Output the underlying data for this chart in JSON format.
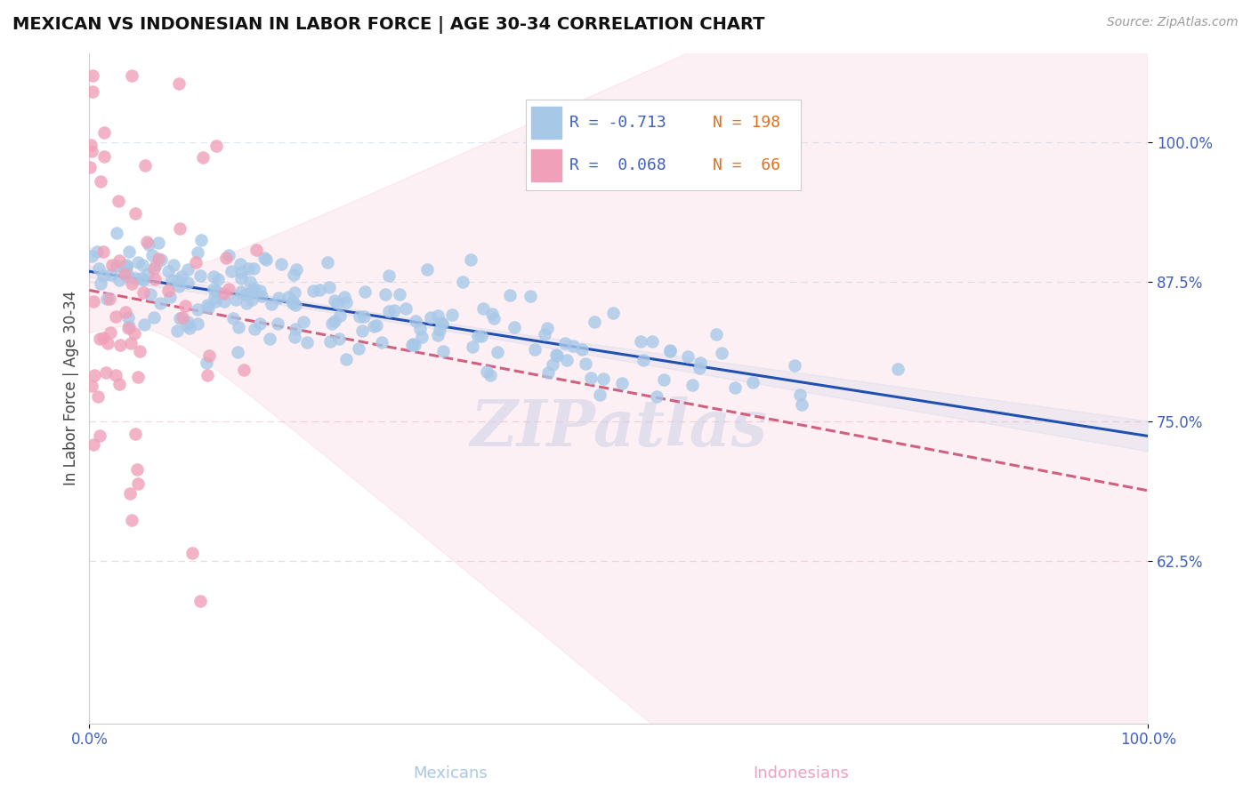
{
  "title": "MEXICAN VS INDONESIAN IN LABOR FORCE | AGE 30-34 CORRELATION CHART",
  "source_text": "Source: ZipAtlas.com",
  "xlabel_mexican": "Mexicans",
  "xlabel_indonesian": "Indonesians",
  "ylabel": "In Labor Force | Age 30-34",
  "xlim": [
    0.0,
    1.0
  ],
  "ylim": [
    0.48,
    1.08
  ],
  "yticks": [
    0.625,
    0.75,
    0.875,
    1.0
  ],
  "ytick_labels": [
    "62.5%",
    "75.0%",
    "87.5%",
    "100.0%"
  ],
  "color_mexican_dot": "#a8c8e8",
  "color_indonesian_dot": "#f0a0b8",
  "color_trend_mexican": "#2050b0",
  "color_trend_indonesian": "#d06080",
  "color_grid_pink": "#f0d8dc",
  "color_grid_blue": "#dce8f0",
  "background_color": "#ffffff",
  "watermark_text": "ZIPatlas",
  "watermark_color": "#c8d8f0",
  "legend_R1": "R = -0.713",
  "legend_N1": "N = 198",
  "legend_R2": "R =  0.068",
  "legend_N2": "N =  66",
  "color_R_text": "#4060c0",
  "color_N_text": "#e07020",
  "title_fontsize": 14,
  "tick_fontsize": 12,
  "ylabel_fontsize": 12,
  "legend_fontsize": 13
}
